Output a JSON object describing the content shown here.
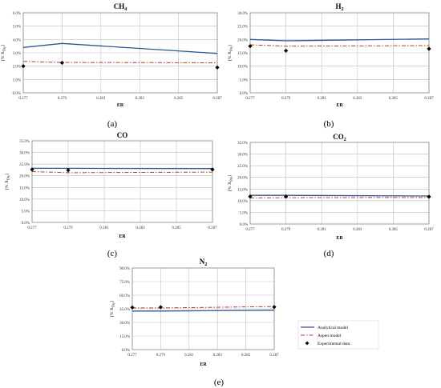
{
  "legend": {
    "analytical": "Analytical model",
    "aspen": "Aspen model",
    "experimental": "Experimental data"
  },
  "colors": {
    "analytical": "#2e5597",
    "aspen": "#c0392b",
    "experimental": "#000000",
    "grid": "#bfbfbf",
    "axis": "#7f7f7f"
  },
  "chart_data": [
    {
      "type": "line",
      "panel_label": "(a)",
      "title": "CH",
      "title_sub": "4",
      "xlabel": "ER",
      "ylabel": "[% X",
      "ylabel_sub": "Dry",
      "ylabel_end": "]",
      "xlim": [
        0.277,
        0.287
      ],
      "ylim": [
        0,
        6.0
      ],
      "x_ticks": [
        "0.277",
        "0.279",
        "0.281",
        "0.283",
        "0.285",
        "0.287"
      ],
      "y_ticks": [
        "0.0%",
        "1.0%",
        "2.0%",
        "3.0%",
        "4.0%",
        "5.0%",
        "6.0%"
      ],
      "grid": true,
      "series": [
        {
          "key": "analytical",
          "style": "solid",
          "x": [
            0.277,
            0.279,
            0.287
          ],
          "y": [
            3.4,
            3.7,
            2.95
          ]
        },
        {
          "key": "aspen",
          "style": "dashdot",
          "x": [
            0.277,
            0.279,
            0.287
          ],
          "y": [
            2.35,
            2.28,
            2.25
          ]
        },
        {
          "key": "experimental",
          "style": "marker",
          "x": [
            0.277,
            0.279,
            0.287
          ],
          "y": [
            2.0,
            2.25,
            1.9
          ]
        }
      ]
    },
    {
      "type": "line",
      "panel_label": "(b)",
      "title": "H",
      "title_sub": "2",
      "xlabel": "ER",
      "ylabel": "[% X",
      "ylabel_sub": "Dry",
      "ylabel_end": "]",
      "xlim": [
        0.277,
        0.287
      ],
      "ylim": [
        0,
        30.0
      ],
      "x_ticks": [
        "0.277",
        "0.279",
        "0.281",
        "0.283",
        "0.285",
        "0.287"
      ],
      "y_ticks": [
        "0.0%",
        "5.0%",
        "10.0%",
        "15.0%",
        "20.0%",
        "25.0%",
        "30.0%"
      ],
      "grid": true,
      "series": [
        {
          "key": "analytical",
          "style": "solid",
          "x": [
            0.277,
            0.279,
            0.287
          ],
          "y": [
            20.0,
            19.5,
            20.2
          ]
        },
        {
          "key": "aspen",
          "style": "dashdot",
          "x": [
            0.277,
            0.279,
            0.287
          ],
          "y": [
            18.0,
            17.5,
            17.7
          ]
        },
        {
          "key": "experimental",
          "style": "marker",
          "x": [
            0.277,
            0.279,
            0.287
          ],
          "y": [
            17.5,
            15.8,
            16.5
          ]
        }
      ]
    },
    {
      "type": "line",
      "panel_label": "(c)",
      "title": "CO",
      "title_sub": "",
      "xlabel": "ER",
      "ylabel": "[% X",
      "ylabel_sub": "Dry",
      "ylabel_end": "]",
      "xlim": [
        0.277,
        0.287
      ],
      "ylim": [
        0,
        35.0
      ],
      "x_ticks": [
        "0.277",
        "0.279",
        "0.281",
        "0.283",
        "0.285",
        "0.287"
      ],
      "y_ticks": [
        "0.0%",
        "5.0%",
        "10.0%",
        "15.0%",
        "20.0%",
        "25.0%",
        "30.0%",
        "35.0%"
      ],
      "grid": true,
      "series": [
        {
          "key": "analytical",
          "style": "solid",
          "x": [
            0.277,
            0.279,
            0.287
          ],
          "y": [
            23.2,
            23.2,
            23.1
          ]
        },
        {
          "key": "aspen",
          "style": "dashdot",
          "x": [
            0.277,
            0.279,
            0.287
          ],
          "y": [
            21.8,
            21.3,
            21.6
          ]
        },
        {
          "key": "experimental",
          "style": "marker",
          "x": [
            0.277,
            0.279,
            0.287
          ],
          "y": [
            22.7,
            22.4,
            22.7
          ]
        }
      ]
    },
    {
      "type": "line",
      "panel_label": "(d)",
      "title": "CO",
      "title_sub": "2",
      "xlabel": "ER",
      "ylabel": "[% X",
      "ylabel_sub": "Dry",
      "ylabel_end": "]",
      "xlim": [
        0.277,
        0.287
      ],
      "ylim": [
        0,
        35.0
      ],
      "x_ticks": [
        "0.277",
        "0.279",
        "0.281",
        "0.283",
        "0.285",
        "0.287"
      ],
      "y_ticks": [
        "0.0%",
        "5.0%",
        "10.0%",
        "15.0%",
        "20.0%",
        "25.0%",
        "30.0%",
        "35.0%"
      ],
      "grid": true,
      "series": [
        {
          "key": "analytical",
          "style": "solid",
          "x": [
            0.277,
            0.279,
            0.287
          ],
          "y": [
            12.3,
            12.3,
            12.0
          ]
        },
        {
          "key": "aspen",
          "style": "dashdot",
          "x": [
            0.277,
            0.279,
            0.287
          ],
          "y": [
            11.2,
            11.3,
            11.4
          ]
        },
        {
          "key": "experimental",
          "style": "marker",
          "x": [
            0.277,
            0.279,
            0.287
          ],
          "y": [
            11.8,
            11.8,
            11.7
          ]
        }
      ]
    },
    {
      "type": "line",
      "panel_label": "(e)",
      "title": "N",
      "title_sub": "2",
      "xlabel": "ER",
      "ylabel": "[% X",
      "ylabel_sub": "Dry",
      "ylabel_end": "]",
      "xlim": [
        0.277,
        0.287
      ],
      "ylim": [
        0,
        90.0
      ],
      "x_ticks": [
        "0.277",
        "0.279",
        "0.281",
        "0.283",
        "0.285",
        "0.287"
      ],
      "y_ticks": [
        "0.0%",
        "15.0%",
        "30.0%",
        "45.0%",
        "60.0%",
        "75.0%",
        "90.0%"
      ],
      "grid": true,
      "legend_position": "right",
      "series": [
        {
          "key": "analytical",
          "style": "solid",
          "x": [
            0.277,
            0.279,
            0.287
          ],
          "y": [
            42.5,
            42.5,
            43.5
          ]
        },
        {
          "key": "aspen",
          "style": "dashdot",
          "x": [
            0.277,
            0.279,
            0.287
          ],
          "y": [
            46.0,
            46.0,
            47.5
          ]
        },
        {
          "key": "experimental",
          "style": "marker",
          "x": [
            0.277,
            0.279,
            0.287
          ],
          "y": [
            46.5,
            46.8,
            47.0
          ]
        }
      ]
    }
  ]
}
